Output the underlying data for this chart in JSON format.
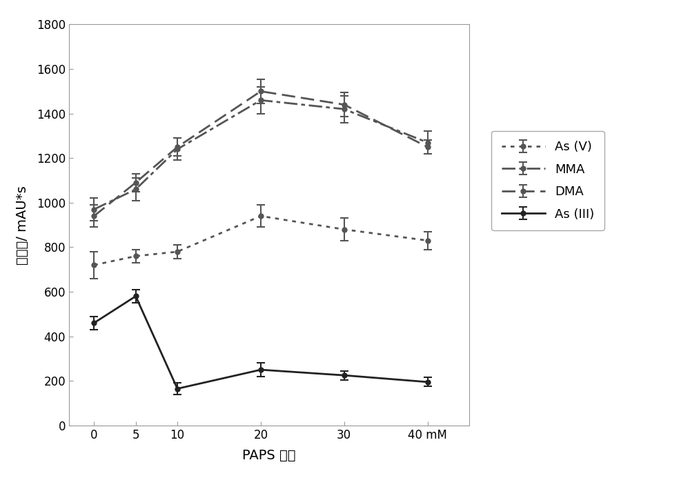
{
  "x": [
    0,
    5,
    10,
    20,
    30,
    40
  ],
  "xlabel": "PAPS 浓度",
  "ylabel": "峰面积/ mAU*s",
  "xtick_labels": [
    "0",
    "5",
    "10",
    "20",
    "30",
    "40 mM"
  ],
  "ylim": [
    0,
    1800
  ],
  "yticks": [
    0,
    200,
    400,
    600,
    800,
    1000,
    1200,
    1400,
    1600,
    1800
  ],
  "series": {
    "As (V)": {
      "y": [
        720,
        760,
        780,
        940,
        880,
        830
      ],
      "yerr": [
        60,
        30,
        30,
        50,
        50,
        40
      ],
      "color": "#555555",
      "linestyle": "dotted",
      "linewidth": 2.0
    },
    "MMA": {
      "y": [
        970,
        1060,
        1240,
        1460,
        1420,
        1270
      ],
      "yerr": [
        50,
        50,
        50,
        60,
        60,
        50
      ],
      "color": "#555555",
      "linestyle": "dashdot",
      "linewidth": 2.0
    },
    "DMA": {
      "y": [
        940,
        1090,
        1250,
        1500,
        1440,
        1250
      ],
      "yerr": [
        50,
        40,
        40,
        55,
        55,
        30
      ],
      "color": "#555555",
      "linestyle": "dashed",
      "linewidth": 2.0
    },
    "As (III)": {
      "y": [
        460,
        580,
        165,
        250,
        225,
        195
      ],
      "yerr": [
        30,
        30,
        25,
        30,
        20,
        20
      ],
      "color": "#222222",
      "linestyle": "solid",
      "linewidth": 2.0
    }
  },
  "bg_color": "#ffffff",
  "font_size": 13,
  "label_fontsize": 14,
  "tick_fontsize": 12
}
